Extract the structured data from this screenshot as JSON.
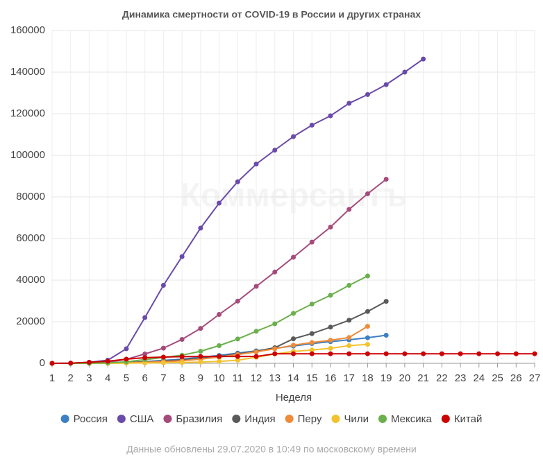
{
  "chart_data": {
    "type": "line",
    "title": "Динамика смертности от COVID-19 в России и других странах",
    "x_label": "Неделя",
    "footnote": "Данные обновлены 29.07.2020 в 10:49 по московскому времени",
    "watermark": "Коммерсантъ",
    "x": [
      1,
      2,
      3,
      4,
      5,
      6,
      7,
      8,
      9,
      10,
      11,
      12,
      13,
      14,
      15,
      16,
      17,
      18,
      19,
      20,
      21,
      22,
      23,
      24,
      25,
      26,
      27
    ],
    "xlim": [
      1,
      27
    ],
    "xticks": [
      1,
      2,
      3,
      4,
      5,
      6,
      7,
      8,
      9,
      10,
      11,
      12,
      13,
      14,
      15,
      16,
      17,
      18,
      19,
      20,
      21,
      22,
      23,
      24,
      25,
      26,
      27
    ],
    "ylim": [
      0,
      160000
    ],
    "yticks": [
      0,
      20000,
      40000,
      60000,
      80000,
      100000,
      120000,
      140000,
      160000
    ],
    "grid": true,
    "legend": "bottom",
    "series": [
      {
        "name": "Россия",
        "color": "#3d7fc4",
        "values": [
          0,
          0,
          0,
          100,
          300,
          800,
          1400,
          2000,
          2900,
          3800,
          4900,
          6000,
          7300,
          8300,
          9500,
          10400,
          11300,
          12300,
          13500,
          null,
          null,
          null,
          null,
          null,
          null,
          null,
          null
        ]
      },
      {
        "name": "США",
        "color": "#6a4aab",
        "values": [
          0,
          100,
          500,
          1500,
          7000,
          22000,
          37500,
          51300,
          65000,
          77000,
          87300,
          95800,
          102500,
          109000,
          114500,
          119000,
          125000,
          129200,
          134000,
          140000,
          146300,
          null,
          null,
          null,
          null,
          null,
          null
        ]
      },
      {
        "name": "Бразилия",
        "color": "#a64a7b",
        "values": [
          0,
          0,
          100,
          500,
          1900,
          4500,
          7300,
          11500,
          16800,
          23500,
          29900,
          37000,
          43900,
          51000,
          58300,
          65500,
          74000,
          81500,
          88500,
          null,
          null,
          null,
          null,
          null,
          null,
          null,
          null
        ]
      },
      {
        "name": "Индия",
        "color": "#5a5a5a",
        "values": [
          0,
          0,
          0,
          100,
          400,
          700,
          1000,
          1700,
          2400,
          3300,
          4500,
          5800,
          7500,
          11800,
          14300,
          17400,
          20700,
          24900,
          29800,
          null,
          null,
          null,
          null,
          null,
          null,
          null,
          null
        ]
      },
      {
        "name": "Перу",
        "color": "#ee8c3a",
        "values": [
          0,
          0,
          0,
          50,
          200,
          500,
          800,
          1200,
          2000,
          3000,
          4200,
          5500,
          7000,
          8700,
          10000,
          11100,
          12400,
          17800,
          null,
          null,
          null,
          null,
          null,
          null,
          null,
          null,
          null
        ]
      },
      {
        "name": "Чили",
        "color": "#f2c230",
        "values": [
          0,
          0,
          0,
          0,
          100,
          150,
          250,
          400,
          600,
          900,
          1500,
          2900,
          4500,
          5700,
          6400,
          7200,
          8500,
          9100,
          null,
          null,
          null,
          null,
          null,
          null,
          null,
          null,
          null
        ]
      },
      {
        "name": "Мексика",
        "color": "#6ab04c",
        "values": [
          0,
          0,
          50,
          200,
          700,
          1800,
          2800,
          3900,
          5800,
          8500,
          11700,
          15400,
          19000,
          24000,
          28500,
          32700,
          37500,
          42000,
          null,
          null,
          null,
          null,
          null,
          null,
          null,
          null,
          null
        ]
      },
      {
        "name": "Китай",
        "color": "#cc0000",
        "values": [
          0,
          100,
          500,
          1000,
          2000,
          2700,
          3000,
          3200,
          3300,
          3300,
          3300,
          3300,
          4600,
          4600,
          4600,
          4600,
          4600,
          4600,
          4600,
          4600,
          4600,
          4600,
          4600,
          4600,
          4600,
          4600,
          4600
        ]
      }
    ]
  }
}
